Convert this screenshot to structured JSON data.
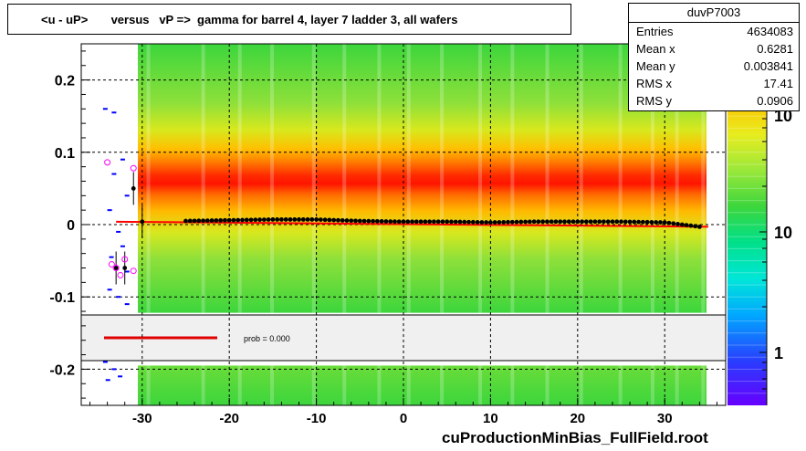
{
  "title": "<u - uP>       versus   vP =>  gamma for barrel 4, layer 7 ladder 3, all wafers",
  "stats": {
    "name": "duvP7003",
    "rows": [
      {
        "label": "Entries",
        "value": "4634083"
      },
      {
        "label": "Mean x",
        "value": "0.6281"
      },
      {
        "label": "Mean y",
        "value": "0.003841"
      },
      {
        "label": "RMS x",
        "value": "17.41"
      },
      {
        "label": "RMS y",
        "value": "0.0906"
      }
    ]
  },
  "file_label": "cuProductionMinBias_FullField.root",
  "fit_legend": "prob = 0.000",
  "colors": {
    "profile_points": "#000000",
    "alt_points": "#ff00ff",
    "fit_line": "#ff0000",
    "side_ticks": "#0000ff"
  },
  "chart_data": {
    "type": "heatmap",
    "x_range": [
      -37,
      37
    ],
    "y_range": [
      -0.25,
      0.25
    ],
    "x_ticks": [
      "-30",
      "-20",
      "-10",
      "0",
      "10",
      "20",
      "30"
    ],
    "x_tick_values": [
      -30,
      -20,
      -10,
      0,
      10,
      20,
      30
    ],
    "y_ticks": [
      "0.2",
      "0.1",
      "0",
      "-0.1",
      "-0.2"
    ],
    "y_tick_values": [
      0.2,
      0.1,
      0,
      -0.1,
      -0.2
    ],
    "grid": true,
    "log_z": true,
    "z_ticks": [
      "10",
      "1"
    ],
    "z_tick_values": [
      10,
      1
    ],
    "z_exponent_label": "2",
    "filled_x_range": [
      -30.5,
      34.8
    ],
    "profile": [
      {
        "x": -33,
        "y": -0.06
      },
      {
        "x": -32,
        "y": -0.06
      },
      {
        "x": -31,
        "y": 0.05
      },
      {
        "x": -30,
        "y": 0.004
      },
      {
        "x": -25,
        "y": 0.005
      },
      {
        "x": -20,
        "y": 0.006
      },
      {
        "x": -15,
        "y": 0.007
      },
      {
        "x": -10,
        "y": 0.007
      },
      {
        "x": -5,
        "y": 0.005
      },
      {
        "x": 0,
        "y": 0.004
      },
      {
        "x": 5,
        "y": 0.004
      },
      {
        "x": 10,
        "y": 0.003
      },
      {
        "x": 15,
        "y": 0.004
      },
      {
        "x": 20,
        "y": 0.004
      },
      {
        "x": 25,
        "y": 0.004
      },
      {
        "x": 30,
        "y": 0.003
      },
      {
        "x": 34,
        "y": -0.003
      }
    ],
    "alt_points": [
      {
        "x": -34,
        "y": 0.086
      },
      {
        "x": -31,
        "y": 0.078
      },
      {
        "x": -32,
        "y": -0.048
      },
      {
        "x": -33,
        "y": -0.06
      },
      {
        "x": -32.5,
        "y": -0.07
      },
      {
        "x": -31,
        "y": -0.064
      },
      {
        "x": -33.5,
        "y": -0.055
      }
    ],
    "fit": {
      "x": [
        -33,
        35
      ],
      "y": [
        0.004,
        -0.003
      ]
    }
  }
}
